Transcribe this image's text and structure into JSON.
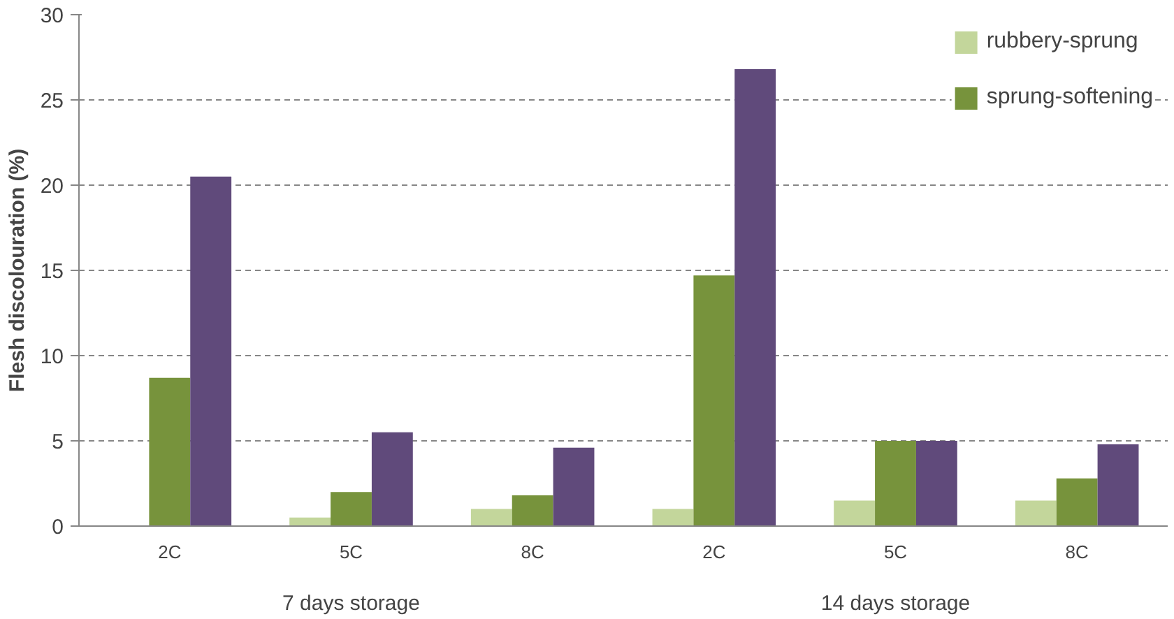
{
  "chart_data": {
    "type": "bar",
    "ylabel": "Flesh discolouration (%)",
    "categories": [
      "2C",
      "5C",
      "8C",
      "2C",
      "5C",
      "8C"
    ],
    "annotations": [
      "7 days storage",
      "14 days storage"
    ],
    "series": [
      {
        "name": "rubbery-sprung",
        "color": "#c3d69b",
        "values": [
          0,
          0.5,
          1.0,
          1.0,
          1.5,
          1.5
        ]
      },
      {
        "name": "sprung-softening",
        "color": "#77933c",
        "values": [
          8.7,
          2.0,
          1.8,
          14.7,
          5.0,
          2.8
        ]
      },
      {
        "color": "#604a7b",
        "values": [
          20.5,
          5.5,
          4.6,
          26.8,
          5.0,
          4.8
        ]
      }
    ],
    "ylim": [
      0,
      30
    ],
    "yticks": [
      0,
      5,
      10,
      15,
      20,
      25,
      30
    ],
    "grid": "y",
    "legend": "top right"
  }
}
